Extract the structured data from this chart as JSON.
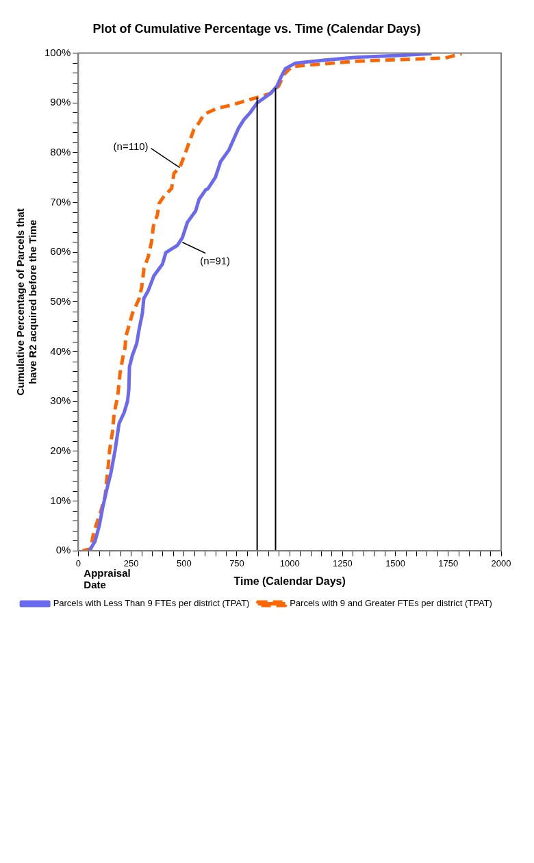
{
  "chart_data": {
    "type": "line",
    "title": "Plot of Cumulative Percentage vs. Time (Calendar Days)",
    "xlabel": "Time (Calendar Days)",
    "ylabel": "Cumulative Percentage of Parcels that have R2 acquired before the Time",
    "xlim": [
      0,
      2000
    ],
    "ylim": [
      0,
      100
    ],
    "xticks": [
      0,
      {
        "value": 50,
        "label": null
      },
      {
        "value": 100,
        "label": null
      },
      {
        "value": 150,
        "label": null
      },
      {
        "value": 200,
        "label": null
      },
      250,
      {
        "value": 300,
        "label": null
      },
      {
        "value": 350,
        "label": null
      },
      {
        "value": 400,
        "label": null
      },
      {
        "value": 450,
        "label": null
      },
      500,
      {
        "value": 550,
        "label": null
      },
      {
        "value": 600,
        "label": null
      },
      {
        "value": 650,
        "label": null
      },
      {
        "value": 700,
        "label": null
      },
      750,
      {
        "value": 800,
        "label": null
      },
      {
        "value": 850,
        "label": null
      },
      {
        "value": 900,
        "label": null
      },
      {
        "value": 950,
        "label": null
      },
      1000,
      {
        "value": 1050,
        "label": null
      },
      {
        "value": 1100,
        "label": null
      },
      {
        "value": 1150,
        "label": null
      },
      {
        "value": 1200,
        "label": null
      },
      1250,
      {
        "value": 1300,
        "label": null
      },
      {
        "value": 1350,
        "label": null
      },
      {
        "value": 1400,
        "label": null
      },
      {
        "value": 1450,
        "label": null
      },
      1500,
      {
        "value": 1550,
        "label": null
      },
      {
        "value": 1600,
        "label": null
      },
      {
        "value": 1650,
        "label": null
      },
      {
        "value": 1700,
        "label": null
      },
      1750,
      {
        "value": 1800,
        "label": null
      },
      {
        "value": 1850,
        "label": null
      },
      {
        "value": 1900,
        "label": null
      },
      {
        "value": 1950,
        "label": null
      },
      2000
    ],
    "yticks": [
      {
        "value": 0,
        "label": "0%"
      },
      {
        "value": 2,
        "label": null
      },
      {
        "value": 4,
        "label": null
      },
      {
        "value": 6,
        "label": null
      },
      {
        "value": 8,
        "label": null
      },
      {
        "value": 10,
        "label": "10%"
      },
      {
        "value": 12,
        "label": null
      },
      {
        "value": 14,
        "label": null
      },
      {
        "value": 16,
        "label": null
      },
      {
        "value": 18,
        "label": null
      },
      {
        "value": 20,
        "label": "20%"
      },
      {
        "value": 22,
        "label": null
      },
      {
        "value": 24,
        "label": null
      },
      {
        "value": 26,
        "label": null
      },
      {
        "value": 28,
        "label": null
      },
      {
        "value": 30,
        "label": "30%"
      },
      {
        "value": 32,
        "label": null
      },
      {
        "value": 34,
        "label": null
      },
      {
        "value": 36,
        "label": null
      },
      {
        "value": 38,
        "label": null
      },
      {
        "value": 40,
        "label": "40%"
      },
      {
        "value": 42,
        "label": null
      },
      {
        "value": 44,
        "label": null
      },
      {
        "value": 46,
        "label": null
      },
      {
        "value": 48,
        "label": null
      },
      {
        "value": 50,
        "label": "50%"
      },
      {
        "value": 52,
        "label": null
      },
      {
        "value": 54,
        "label": null
      },
      {
        "value": 56,
        "label": null
      },
      {
        "value": 58,
        "label": null
      },
      {
        "value": 60,
        "label": "60%"
      },
      {
        "value": 62,
        "label": null
      },
      {
        "value": 64,
        "label": null
      },
      {
        "value": 66,
        "label": null
      },
      {
        "value": 68,
        "label": null
      },
      {
        "value": 70,
        "label": "70%"
      },
      {
        "value": 72,
        "label": null
      },
      {
        "value": 74,
        "label": null
      },
      {
        "value": 76,
        "label": null
      },
      {
        "value": 78,
        "label": null
      },
      {
        "value": 80,
        "label": "80%"
      },
      {
        "value": 82,
        "label": null
      },
      {
        "value": 84,
        "label": null
      },
      {
        "value": 86,
        "label": null
      },
      {
        "value": 88,
        "label": null
      },
      {
        "value": 90,
        "label": "90%"
      },
      {
        "value": 92,
        "label": null
      },
      {
        "value": 94,
        "label": null
      },
      {
        "value": 96,
        "label": null
      },
      {
        "value": 98,
        "label": null
      },
      {
        "value": 100,
        "label": "100%"
      }
    ],
    "grid": false,
    "legend": "bottom",
    "marker": "none",
    "series": [
      {
        "name": "Parcels with Less Than 9 FTEs per district (TPAT)",
        "color": "#6a6af0",
        "line_style": "solid",
        "x": [
          52,
          79,
          99,
          116,
          134,
          154,
          174,
          193,
          217,
          233,
          239,
          242,
          256,
          276,
          288,
          303,
          310,
          331,
          358,
          398,
          414,
          469,
          492,
          516,
          555,
          571,
          602,
          614,
          649,
          673,
          712,
          736,
          759,
          783,
          814,
          846,
          909,
          940,
          960,
          980,
          1027,
          1168,
          1325,
          1498,
          1671
        ],
        "values": [
          0,
          1.9,
          5,
          8.8,
          12.2,
          15.6,
          20.2,
          25.6,
          27.8,
          30.1,
          32.4,
          37,
          39.3,
          41.6,
          44.6,
          47.7,
          50.7,
          52.3,
          55.3,
          57.6,
          59.9,
          61.4,
          62.9,
          66,
          68.3,
          70.6,
          72.5,
          72.8,
          75.1,
          78.2,
          80.5,
          82.8,
          85,
          86.6,
          88.1,
          90,
          91.9,
          93.4,
          95.3,
          96.9,
          98,
          98.6,
          99.2,
          99.5,
          99.9
        ]
      },
      {
        "name": "Parcels with 9 and Greater FTEs per district (TPAT)",
        "color": "#ff6600",
        "line_style": "dashed",
        "x": [
          20,
          60,
          68,
          83,
          107,
          127,
          134,
          142,
          148,
          162,
          170,
          186,
          197,
          209,
          221,
          225,
          241,
          256,
          288,
          300,
          311,
          331,
          347,
          355,
          374,
          382,
          406,
          441,
          453,
          480,
          504,
          524,
          547,
          571,
          594,
          657,
          728,
          791,
          854,
          909,
          948,
          972,
          1011,
          1090,
          1208,
          1325,
          1577,
          1734,
          1813
        ],
        "values": [
          0,
          0.4,
          2.7,
          5,
          8,
          11,
          14.1,
          17.2,
          20.2,
          24,
          27.8,
          30.9,
          35.5,
          38.5,
          40.8,
          43.1,
          45.4,
          47.7,
          50.7,
          53,
          56.8,
          59.1,
          62.2,
          65.2,
          67.5,
          69.8,
          71.3,
          72.8,
          75.9,
          77,
          79.7,
          82,
          84.7,
          86,
          87.7,
          88.9,
          89.6,
          90.4,
          91.2,
          91.9,
          93.4,
          95.7,
          97.3,
          97.6,
          98,
          98.4,
          98.8,
          99,
          99.9
        ]
      }
    ],
    "ref_lines": [
      {
        "axis": "x",
        "value": 846,
        "color": "#000000"
      },
      {
        "axis": "x",
        "value": 933,
        "color": "#000000"
      }
    ],
    "annotations": [
      {
        "text": "(n=110)",
        "x": 480,
        "y": 77
      },
      {
        "text": "(n=91)",
        "x": 492,
        "y": 62
      },
      "Appraisal Date"
    ]
  }
}
